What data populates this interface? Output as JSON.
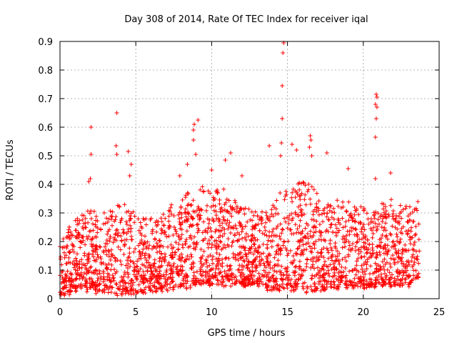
{
  "chart_data": {
    "type": "scatter",
    "title": "Day 308 of 2014, Rate Of TEC Index for receiver iqal",
    "xlabel": "GPS time / hours",
    "ylabel": "ROTI / TECUs",
    "xlim": [
      0,
      25
    ],
    "ylim": [
      0,
      0.9
    ],
    "x_ticks": [
      "0",
      "5",
      "10",
      "15",
      "20",
      "25"
    ],
    "y_ticks": [
      "0",
      "0.1",
      "0.2",
      "0.3",
      "0.4",
      "0.5",
      "0.6",
      "0.7",
      "0.8",
      "0.9"
    ],
    "grid": true,
    "marker": "+",
    "point_color": "#ff0000",
    "series_note_hours_range": [
      0,
      23.7
    ],
    "outliers": [
      {
        "x": 2.05,
        "y": 0.6
      },
      {
        "x": 2.05,
        "y": 0.505
      },
      {
        "x": 1.9,
        "y": 0.41
      },
      {
        "x": 2.0,
        "y": 0.42
      },
      {
        "x": 3.75,
        "y": 0.65
      },
      {
        "x": 3.7,
        "y": 0.535
      },
      {
        "x": 3.75,
        "y": 0.505
      },
      {
        "x": 4.5,
        "y": 0.515
      },
      {
        "x": 4.7,
        "y": 0.47
      },
      {
        "x": 4.6,
        "y": 0.43
      },
      {
        "x": 8.85,
        "y": 0.61
      },
      {
        "x": 9.1,
        "y": 0.625
      },
      {
        "x": 8.8,
        "y": 0.59
      },
      {
        "x": 8.8,
        "y": 0.555
      },
      {
        "x": 8.95,
        "y": 0.505
      },
      {
        "x": 8.4,
        "y": 0.47
      },
      {
        "x": 11.25,
        "y": 0.51
      },
      {
        "x": 12.0,
        "y": 0.43
      },
      {
        "x": 13.8,
        "y": 0.535
      },
      {
        "x": 14.75,
        "y": 0.895
      },
      {
        "x": 14.7,
        "y": 0.86
      },
      {
        "x": 14.65,
        "y": 0.745
      },
      {
        "x": 14.65,
        "y": 0.63
      },
      {
        "x": 14.6,
        "y": 0.545
      },
      {
        "x": 14.55,
        "y": 0.5
      },
      {
        "x": 15.3,
        "y": 0.54
      },
      {
        "x": 15.6,
        "y": 0.52
      },
      {
        "x": 16.5,
        "y": 0.57
      },
      {
        "x": 16.55,
        "y": 0.555
      },
      {
        "x": 16.45,
        "y": 0.53
      },
      {
        "x": 16.6,
        "y": 0.5
      },
      {
        "x": 17.6,
        "y": 0.51
      },
      {
        "x": 20.85,
        "y": 0.715
      },
      {
        "x": 20.9,
        "y": 0.705
      },
      {
        "x": 20.8,
        "y": 0.68
      },
      {
        "x": 20.9,
        "y": 0.67
      },
      {
        "x": 20.85,
        "y": 0.63
      },
      {
        "x": 20.8,
        "y": 0.565
      },
      {
        "x": 20.8,
        "y": 0.42
      },
      {
        "x": 19.0,
        "y": 0.455
      },
      {
        "x": 21.8,
        "y": 0.44
      },
      {
        "x": 10.9,
        "y": 0.485
      },
      {
        "x": 10.0,
        "y": 0.45
      },
      {
        "x": 7.9,
        "y": 0.43
      }
    ],
    "envelope_hours": [
      0,
      1,
      2,
      3,
      4,
      5,
      6,
      7,
      8,
      9,
      10,
      11,
      12,
      13,
      14,
      15,
      16,
      17,
      18,
      19,
      20,
      21,
      22,
      23,
      23.7
    ],
    "envelope_typical_max": [
      0.2,
      0.28,
      0.32,
      0.3,
      0.33,
      0.29,
      0.28,
      0.3,
      0.36,
      0.4,
      0.38,
      0.38,
      0.33,
      0.3,
      0.33,
      0.4,
      0.42,
      0.38,
      0.33,
      0.35,
      0.32,
      0.33,
      0.34,
      0.33,
      0.34
    ],
    "envelope_typical_min": [
      0.01,
      0.03,
      0.03,
      0.02,
      0.02,
      0.02,
      0.03,
      0.03,
      0.04,
      0.05,
      0.05,
      0.05,
      0.05,
      0.05,
      0.03,
      0.03,
      0.03,
      0.03,
      0.04,
      0.04,
      0.04,
      0.05,
      0.05,
      0.05,
      0.08
    ],
    "dense_point_count": 2600
  }
}
